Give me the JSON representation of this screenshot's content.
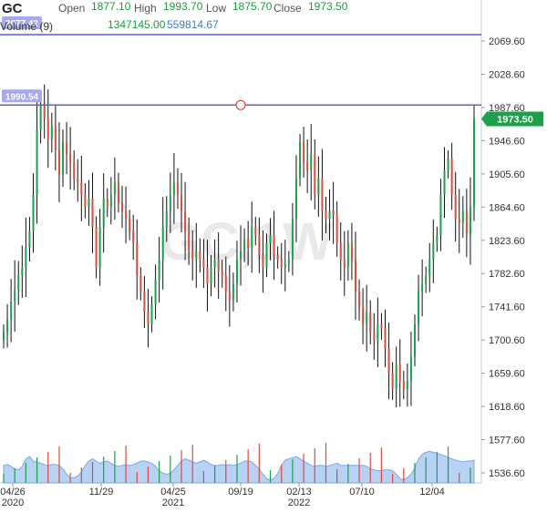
{
  "header": {
    "symbol": "GC",
    "open_label": "Open",
    "open": "1877.10",
    "high_label": "High",
    "high": "1993.70",
    "low_label": "Low",
    "low": "1875.70",
    "close_label": "Close",
    "close": "1973.50",
    "volume_label": "Volume (9)",
    "volume": "1347145.00",
    "volume_ma": "559814.67"
  },
  "watermark": "GC,1W",
  "colors": {
    "up": "#1aa14a",
    "down": "#e04a3a",
    "wick": "#111111",
    "hline": "#5a5fd0",
    "price_tag": "#1aa14a",
    "volume_area": "#9fc3f0"
  },
  "chart_data": {
    "type": "candlestick",
    "interval": "1W",
    "y_ticks": [
      "2069.60",
      "2028.60",
      "1987.60",
      "1946.60",
      "1905.60",
      "1864.60",
      "1823.60",
      "1782.60",
      "1741.60",
      "1700.60",
      "1659.60",
      "1618.60",
      "1577.60",
      "1536.60"
    ],
    "ylim": [
      1520,
      2090
    ],
    "x_ticks": [
      {
        "label": "04/26",
        "sub": "2020"
      },
      {
        "label": "11/29",
        "sub": ""
      },
      {
        "label": "04/25",
        "sub": "2021"
      },
      {
        "label": "09/19",
        "sub": ""
      },
      {
        "label": "02/13",
        "sub": "2022"
      },
      {
        "label": "07/10",
        "sub": ""
      },
      {
        "label": "12/04",
        "sub": ""
      }
    ],
    "horizontal_lines": [
      {
        "price": 2077.42,
        "label": "2077.42"
      },
      {
        "price": 1990.54,
        "label": "1990.54"
      }
    ],
    "last_price": 1973.5,
    "last_price_label": "1973.50",
    "closes": [
      1710,
      1726,
      1748,
      1762,
      1780,
      1790,
      1815,
      1835,
      1880,
      1960,
      1990,
      1975,
      1948,
      1965,
      1935,
      1905,
      1945,
      1930,
      1920,
      1900,
      1895,
      1880,
      1865,
      1875,
      1840,
      1790,
      1840,
      1875,
      1865,
      1880,
      1895,
      1870,
      1860,
      1850,
      1835,
      1820,
      1780,
      1760,
      1735,
      1720,
      1745,
      1775,
      1800,
      1840,
      1860,
      1880,
      1895,
      1880,
      1860,
      1835,
      1810,
      1800,
      1810,
      1800,
      1790,
      1770,
      1790,
      1800,
      1785,
      1780,
      1760,
      1750,
      1770,
      1800,
      1810,
      1825,
      1815,
      1840,
      1830,
      1805,
      1790,
      1820,
      1830,
      1805,
      1800,
      1790,
      1795,
      1800,
      1850,
      1900,
      1945,
      1920,
      1910,
      1930,
      1880,
      1900,
      1860,
      1850,
      1860,
      1855,
      1820,
      1800,
      1790,
      1820,
      1800,
      1760,
      1740,
      1720,
      1735,
      1710,
      1700,
      1720,
      1715,
      1690,
      1660,
      1640,
      1670,
      1650,
      1640,
      1650,
      1680,
      1720,
      1760,
      1770,
      1780,
      1800,
      1820,
      1830,
      1880,
      1910,
      1925,
      1880,
      1850,
      1845,
      1860,
      1830,
      1865,
      1973.5
    ],
    "volume_area": [
      0.4,
      0.42,
      0.38,
      0.32,
      0.3,
      0.38,
      0.55,
      0.6,
      0.5,
      0.48,
      0.45,
      0.42,
      0.4,
      0.42,
      0.42,
      0.4,
      0.32,
      0.2,
      0.12,
      0.12,
      0.16,
      0.25,
      0.4,
      0.5,
      0.55,
      0.5,
      0.45,
      0.48,
      0.5,
      0.45,
      0.4,
      0.38,
      0.4,
      0.42,
      0.4,
      0.42,
      0.45,
      0.5,
      0.5,
      0.48,
      0.45,
      0.38,
      0.28,
      0.22,
      0.2,
      0.22,
      0.3,
      0.4,
      0.5,
      0.55,
      0.52,
      0.48,
      0.45,
      0.48,
      0.52,
      0.48,
      0.42,
      0.4,
      0.4,
      0.42,
      0.4,
      0.42,
      0.4,
      0.42,
      0.45,
      0.5,
      0.5,
      0.48,
      0.4,
      0.32,
      0.2,
      0.1,
      0.06,
      0.1,
      0.22,
      0.4,
      0.52,
      0.55,
      0.58,
      0.6,
      0.55,
      0.5,
      0.45,
      0.4,
      0.38,
      0.4,
      0.4,
      0.38,
      0.4,
      0.42,
      0.45,
      0.4,
      0.4,
      0.4,
      0.4,
      0.4,
      0.4,
      0.4,
      0.38,
      0.32,
      0.3,
      0.28,
      0.28,
      0.3,
      0.3,
      0.28,
      0.2,
      0.1,
      0.08,
      0.12,
      0.2,
      0.35,
      0.55,
      0.65,
      0.7,
      0.72,
      0.7,
      0.68,
      0.65,
      0.62,
      0.58,
      0.55,
      0.52,
      0.5,
      0.48,
      0.5,
      0.5,
      0.52
    ]
  }
}
